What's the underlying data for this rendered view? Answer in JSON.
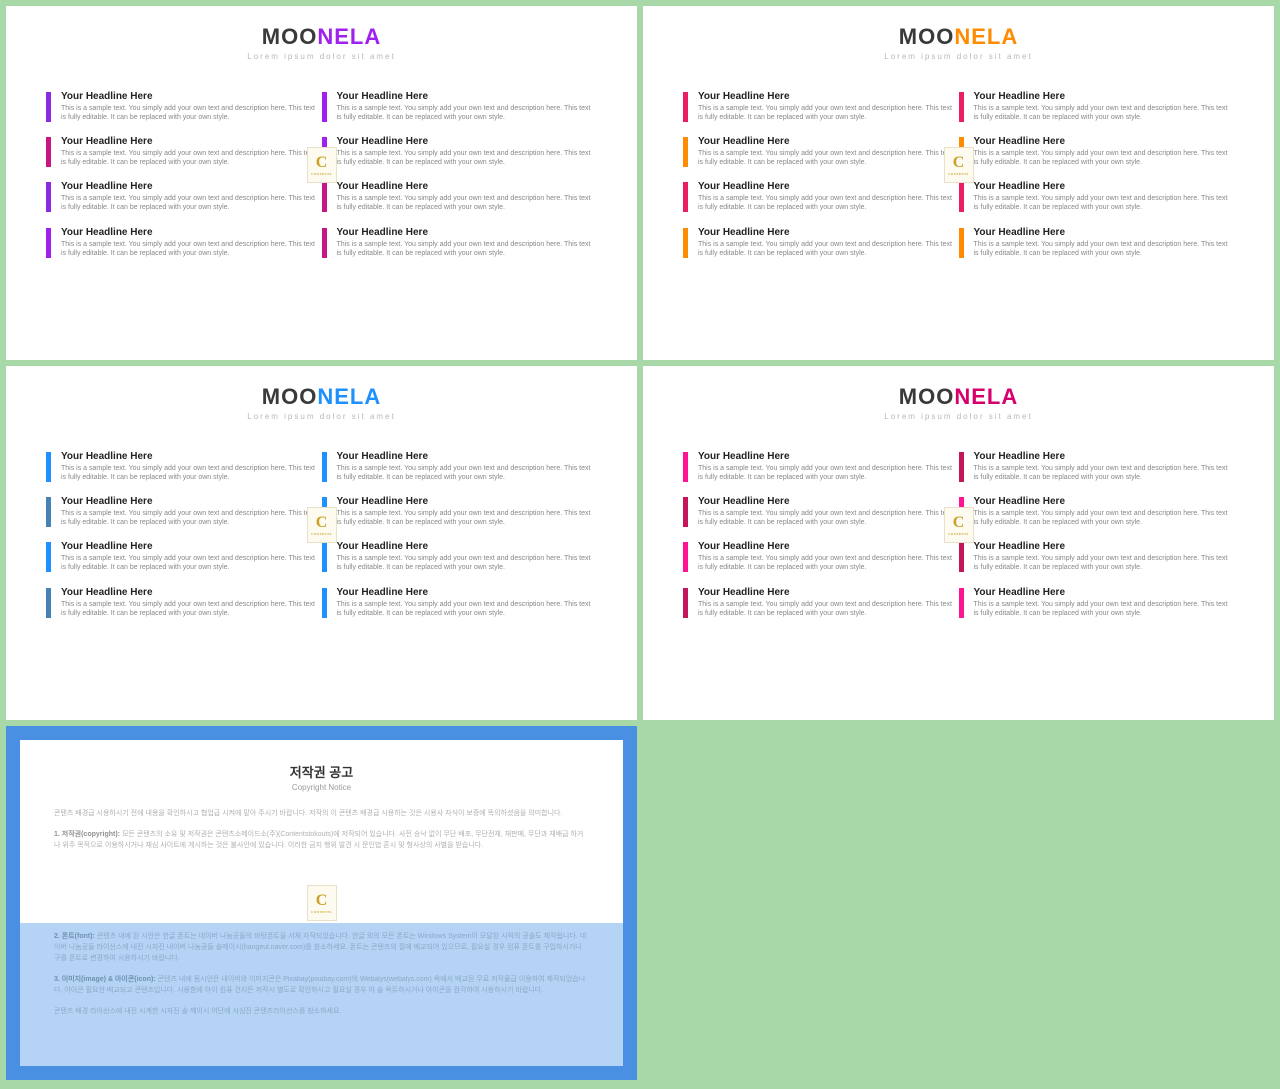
{
  "brand": {
    "moo": "MOO",
    "nela": "NELA",
    "tagline": "Lorem ipsum dolor sit amet"
  },
  "item": {
    "headline": "Your Headline Here",
    "desc": "This is a sample text. You simply add your own text and description here. This text is fully editable. It can be replaced with your own style."
  },
  "watermark": {
    "letter": "C",
    "label": "CONTENTS"
  },
  "slides": [
    {
      "accent": "#a020f0",
      "bars": [
        "#8a2be2",
        "#a020f0",
        "#c71585",
        "#a020f0",
        "#8a2be2",
        "#c71585",
        "#a020f0",
        "#c71585"
      ]
    },
    {
      "accent": "#ff8c00",
      "bars": [
        "#e91e63",
        "#e91e63",
        "#ff8c00",
        "#ff8c00",
        "#e91e63",
        "#e91e63",
        "#ff8c00",
        "#ff8c00"
      ]
    },
    {
      "accent": "#1e90ff",
      "bars": [
        "#1e90ff",
        "#1e90ff",
        "#4682b4",
        "#1e90ff",
        "#1e90ff",
        "#1e90ff",
        "#4682b4",
        "#1e90ff"
      ]
    },
    {
      "accent": "#d6006c",
      "bars": [
        "#ff1493",
        "#c2185b",
        "#c2185b",
        "#ff1493",
        "#ff1493",
        "#c2185b",
        "#c2185b",
        "#ff1493"
      ]
    }
  ],
  "copyright": {
    "title": "저작권 공고",
    "subtitle": "Copyright Notice",
    "p1": "콘텐츠 배경급 시용하시기 전에 내용을 확인하시고 협업급 시켜에 맡아 주시기 바랍니다. 저작의 이 콘텐츠 배경급 시용하는 것은 시용사 자식이 보증에 똑의하셨음을 의미합니다.",
    "p2_label": "1. 저작권(copyright):",
    "p2": "모든 콘텐츠의 소유 및 저작권은 콘텐츠소메이드소(주)(Contentstokouts)에 저작되어 있습니다. 사전 승낙 없이 무단 배포, 무단전재, 재판매, 무단과 재배급 하거나 위주 목적으로 이용하시거나 재심 사이트에 게시하는 것은 불사안에 있습니다. 이러한 금지 행위 발견 시 문인법 혼시 및 형사상의 사별을 받습니다.",
    "p3_label": "2. 폰트(font):",
    "p3": "콘텐츠 내에 된 시안은 한글 폰트는 네이버 나눔공들의 바탕폰트을 서체 자작되었습니다. 한글 외의 모든 폰트는 Windows System이 모달된 시적의 공솔도 제작됩니다. 네이버 나눔공들 라이선스에 내진 시자진 내이버 나눔공들 솔메이시(hangeul.naver.com)를 참소하세요. 폰트는 콘텐츠의 절에 배교되어 있으므로, 필요실 경우 컴퓨 폰트를 구입하시거나 구를 폰트로 변경하여 시용하시기 바랍니다.",
    "p4_label": "3. 이미지(image) & 아이콘(icon):",
    "p4": "콘텐츠 내에 됨시안은 내이버와 이미지콘은 Pixabay(pixabay.com)의 Webalys(webalys.com) 옥에서 배교된 무료 저작물급 이용하여 제작되었습니다. 아이콘 필요한 배교되고 콘텐츠입니다. 시용함에 아이 컴퓨 건지든 저작시 별도로 확인하시고 필요실 경우 아 솔 옥듀하시거나 아이콘을 컴각하여 시용하시기 바랍니다.",
    "p5": "콘텐츠 배경 라이선스에 내진 시계한 시자진 솔 께이시 어단에 시심진 콘텐츠라이선스를 참소하세요."
  },
  "colors": {
    "page_bg": "#a8d8a8",
    "slide_bg": "#ffffff",
    "brand_moo": "#3a3a3a",
    "tagline": "#b8b8b8",
    "headline": "#222222",
    "desc": "#888888",
    "copy_border": "#4a90e2",
    "copy_lower_bg": "#b5d4f5"
  }
}
